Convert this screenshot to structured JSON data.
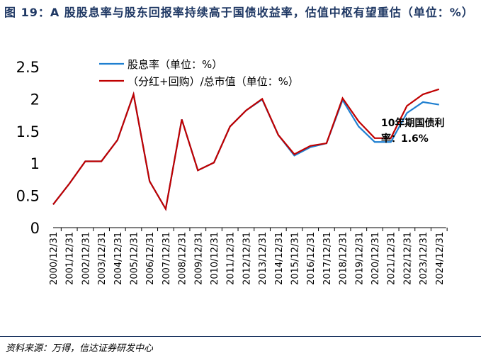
{
  "title": "图 19：A 股股息率与股东回报率持续高于国债收益率，估值中枢有望重估（单位：%）",
  "source": "资料来源：万得，信达证券研发中心",
  "chart_data": {
    "type": "line",
    "x": [
      "2000/12/31",
      "2001/12/31",
      "2002/12/31",
      "2003/12/31",
      "2004/12/31",
      "2005/12/31",
      "2006/12/31",
      "2007/12/31",
      "2008/12/31",
      "2009/12/31",
      "2010/12/31",
      "2011/12/31",
      "2012/12/31",
      "2013/12/31",
      "2014/12/31",
      "2015/12/31",
      "2016/12/31",
      "2017/12/31",
      "2018/12/31",
      "2019/12/31",
      "2020/12/31",
      "2021/12/31",
      "2022/12/31",
      "2023/12/31",
      "2024/12/31"
    ],
    "series": [
      {
        "name": "股息率（单位：%）",
        "color": "#1f7fd0",
        "values": [
          0.36,
          0.68,
          1.03,
          1.03,
          1.36,
          2.07,
          0.72,
          0.29,
          1.68,
          0.89,
          1.01,
          1.57,
          1.82,
          1.99,
          1.44,
          1.12,
          1.25,
          1.31,
          1.98,
          1.57,
          1.33,
          1.33,
          1.78,
          1.95,
          1.91
        ]
      },
      {
        "name": "（分红+回购）/总市值（单位：%）",
        "color": "#c00000",
        "values": [
          0.36,
          0.68,
          1.03,
          1.03,
          1.36,
          2.07,
          0.72,
          0.29,
          1.68,
          0.89,
          1.01,
          1.57,
          1.82,
          2.0,
          1.44,
          1.14,
          1.27,
          1.31,
          2.01,
          1.65,
          1.39,
          1.39,
          1.89,
          2.07,
          2.15
        ]
      }
    ],
    "yticks": [
      "0",
      "0.5",
      "1",
      "1.5",
      "2",
      "2.5"
    ],
    "ylim": [
      0,
      2.5
    ],
    "annotation": "10年期国债利率：1.6%",
    "annotation_line1": "10年期国债利",
    "annotation_line2": "率：1.6%",
    "legend": "top-left"
  }
}
